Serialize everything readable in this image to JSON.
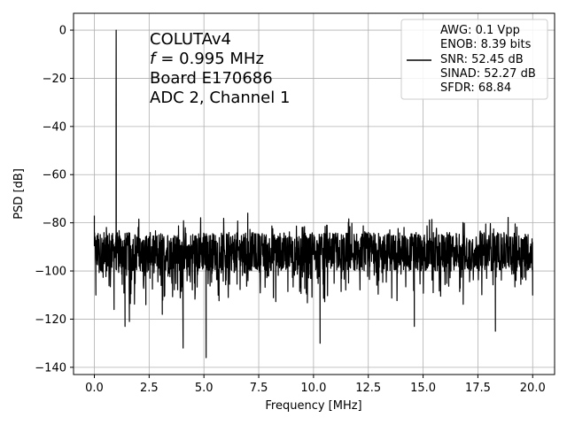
{
  "chart_data": {
    "type": "line",
    "xlabel": "Frequency [MHz]",
    "ylabel": "PSD [dB]",
    "xlim": [
      -0.95,
      21.0
    ],
    "ylim": [
      -143,
      7
    ],
    "x_ticks": [
      0.0,
      2.5,
      5.0,
      7.5,
      10.0,
      12.5,
      15.0,
      17.5,
      20.0
    ],
    "x_tick_labels": [
      "0.0",
      "2.5",
      "5.0",
      "7.5",
      "10.0",
      "12.5",
      "15.0",
      "17.5",
      "20.0"
    ],
    "y_ticks": [
      0,
      -20,
      -40,
      -60,
      -80,
      -100,
      -120,
      -140
    ],
    "y_tick_labels": [
      "0",
      "−20",
      "−40",
      "−60",
      "−80",
      "−100",
      "−120",
      "−140"
    ],
    "grid": true,
    "series_color": "#000000",
    "annotation": [
      "COLUTAv4",
      "= 0.995 MHz",
      "Board E170686",
      "ADC 2, Channel 1"
    ],
    "annotation_symbol": "f",
    "legend": {
      "placement": "top-right",
      "lines": [
        "AWG: 0.1 Vpp",
        "ENOB: 8.39 bits",
        "SNR: 52.45 dB",
        "SINAD: 52.27 dB",
        "SFDR: 68.84"
      ]
    },
    "series": [
      {
        "noise_floor_db": -92,
        "peak": {
          "x": 0.995,
          "y": 0
        },
        "x_range": [
          0,
          20
        ],
        "spurs": [
          {
            "x": 0.0,
            "y": -77
          },
          {
            "x": 1.0,
            "y": -69
          },
          {
            "x": 7.0,
            "y": -76
          },
          {
            "x": 0.07,
            "y": -110
          },
          {
            "x": 0.9,
            "y": -116
          },
          {
            "x": 1.4,
            "y": -123
          },
          {
            "x": 1.6,
            "y": -121
          },
          {
            "x": 2.35,
            "y": -114
          },
          {
            "x": 3.1,
            "y": -118
          },
          {
            "x": 4.05,
            "y": -132
          },
          {
            "x": 5.1,
            "y": -136
          },
          {
            "x": 10.3,
            "y": -130
          },
          {
            "x": 14.6,
            "y": -123
          },
          {
            "x": 18.3,
            "y": -125
          },
          {
            "x": 20.0,
            "y": -110
          }
        ]
      }
    ]
  }
}
